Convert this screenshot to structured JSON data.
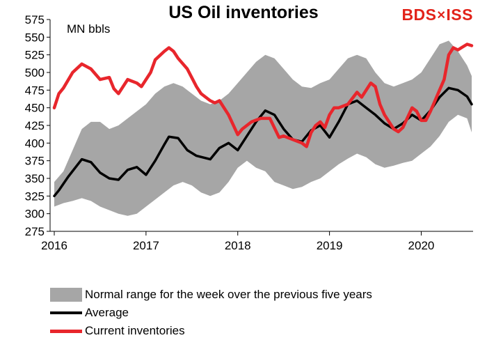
{
  "header": {
    "title": "US Oil inventories",
    "logo_text": "BDSWISS"
  },
  "chart_data": {
    "type": "line",
    "title": "US Oil inventories",
    "ylabel": "MN bbls",
    "xlabel": "",
    "ylim": [
      275,
      575
    ],
    "y_ticks": [
      "275",
      "300",
      "325",
      "350",
      "375",
      "400",
      "425",
      "450",
      "475",
      "500",
      "525",
      "550",
      "575"
    ],
    "x_ticks": [
      "2016",
      "2017",
      "2018",
      "2019",
      "2020"
    ],
    "xlim": [
      2016,
      2020.55
    ],
    "grid": false,
    "legend_position": "bottom",
    "colors": {
      "band": "#a6a6a6",
      "average": "#000000",
      "current": "#e8262c"
    },
    "series": [
      {
        "name": "Normal range for the week over the previous five years",
        "kind": "band",
        "x": [
          2016.0,
          2016.1,
          2016.2,
          2016.3,
          2016.4,
          2016.5,
          2016.6,
          2016.7,
          2016.8,
          2016.9,
          2017.0,
          2017.1,
          2017.2,
          2017.3,
          2017.4,
          2017.5,
          2017.6,
          2017.7,
          2017.8,
          2017.9,
          2018.0,
          2018.1,
          2018.2,
          2018.3,
          2018.4,
          2018.5,
          2018.6,
          2018.7,
          2018.8,
          2018.9,
          2019.0,
          2019.1,
          2019.2,
          2019.3,
          2019.4,
          2019.5,
          2019.6,
          2019.7,
          2019.8,
          2019.9,
          2020.0,
          2020.1,
          2020.2,
          2020.3,
          2020.4,
          2020.5,
          2020.55
        ],
        "low": [
          310,
          315,
          318,
          322,
          318,
          310,
          305,
          300,
          297,
          300,
          310,
          320,
          330,
          340,
          345,
          340,
          330,
          325,
          330,
          345,
          365,
          375,
          365,
          360,
          345,
          340,
          335,
          338,
          345,
          350,
          360,
          370,
          378,
          385,
          380,
          370,
          365,
          368,
          372,
          375,
          385,
          395,
          410,
          430,
          440,
          435,
          415
        ],
        "high": [
          345,
          360,
          390,
          420,
          430,
          430,
          420,
          425,
          435,
          445,
          455,
          470,
          480,
          485,
          480,
          470,
          460,
          455,
          460,
          470,
          485,
          500,
          515,
          525,
          520,
          505,
          490,
          480,
          478,
          485,
          490,
          505,
          520,
          525,
          520,
          500,
          485,
          480,
          485,
          490,
          500,
          520,
          540,
          545,
          530,
          510,
          495
        ]
      },
      {
        "name": "Average",
        "kind": "line",
        "x": [
          2016.0,
          2016.05,
          2016.15,
          2016.3,
          2016.4,
          2016.5,
          2016.6,
          2016.7,
          2016.8,
          2016.9,
          2017.0,
          2017.1,
          2017.2,
          2017.25,
          2017.35,
          2017.45,
          2017.55,
          2017.7,
          2017.8,
          2017.9,
          2018.0,
          2018.1,
          2018.2,
          2018.3,
          2018.4,
          2018.5,
          2018.6,
          2018.7,
          2018.8,
          2018.9,
          2019.0,
          2019.1,
          2019.2,
          2019.3,
          2019.4,
          2019.5,
          2019.6,
          2019.7,
          2019.8,
          2019.9,
          2020.0,
          2020.1,
          2020.2,
          2020.3,
          2020.4,
          2020.5,
          2020.55
        ],
        "values": [
          325,
          333,
          352,
          377,
          373,
          358,
          350,
          348,
          362,
          366,
          355,
          375,
          398,
          409,
          407,
          390,
          382,
          377,
          393,
          400,
          390,
          410,
          430,
          446,
          440,
          420,
          405,
          402,
          418,
          425,
          408,
          430,
          455,
          460,
          450,
          440,
          428,
          420,
          428,
          440,
          432,
          446,
          465,
          478,
          475,
          466,
          455
        ]
      },
      {
        "name": "Current inventories",
        "kind": "line",
        "x": [
          2016.0,
          2016.05,
          2016.1,
          2016.2,
          2016.3,
          2016.4,
          2016.5,
          2016.6,
          2016.65,
          2016.7,
          2016.8,
          2016.9,
          2016.95,
          2017.0,
          2017.05,
          2017.1,
          2017.2,
          2017.25,
          2017.3,
          2017.35,
          2017.45,
          2017.55,
          2017.6,
          2017.7,
          2017.75,
          2017.8,
          2017.9,
          2018.0,
          2018.05,
          2018.15,
          2018.25,
          2018.35,
          2018.45,
          2018.5,
          2018.6,
          2018.7,
          2018.75,
          2018.8,
          2018.85,
          2018.9,
          2018.95,
          2019.0,
          2019.05,
          2019.1,
          2019.2,
          2019.3,
          2019.35,
          2019.45,
          2019.5,
          2019.55,
          2019.6,
          2019.7,
          2019.75,
          2019.8,
          2019.9,
          2019.95,
          2020.0,
          2020.05,
          2020.1,
          2020.15,
          2020.2,
          2020.25,
          2020.3,
          2020.35,
          2020.4,
          2020.45,
          2020.5,
          2020.55
        ],
        "values": [
          450,
          470,
          478,
          500,
          512,
          505,
          490,
          493,
          477,
          470,
          490,
          485,
          480,
          490,
          500,
          518,
          530,
          535,
          530,
          520,
          505,
          480,
          470,
          460,
          457,
          460,
          440,
          412,
          420,
          430,
          435,
          435,
          408,
          410,
          405,
          400,
          395,
          415,
          425,
          430,
          422,
          440,
          450,
          450,
          455,
          472,
          465,
          485,
          480,
          455,
          440,
          420,
          416,
          422,
          450,
          445,
          432,
          432,
          445,
          460,
          475,
          490,
          525,
          535,
          532,
          536,
          540,
          538
        ]
      }
    ]
  }
}
